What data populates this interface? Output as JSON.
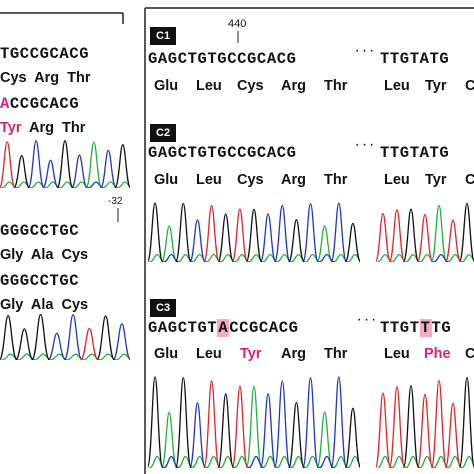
{
  "left_panel": {
    "row1_seq": "TGCCGCACG",
    "row1_aa": "Cys  Arg  Thr",
    "row2_seq_pre": "",
    "row2_seq_mut": "A",
    "row2_seq_post": "CCGCACG",
    "row2_aa_mut": "Tyr",
    "row2_aa_rest": "  Arg  Thr",
    "pos_label": "-32",
    "row3_seq": "GGGCCTGC",
    "row3_aa": "Gly  Ala  Cys",
    "row4_seq": "GGGCCTGC",
    "row4_aa": "Gly  Ala  Cys"
  },
  "right_panel": {
    "c1": {
      "label": "C1",
      "position": "440",
      "seq_left": "GAGCTGTGCCGCACG",
      "ellipsis": "···",
      "seq_right": "TTGTATG",
      "aa_left": [
        "Glu",
        "Leu",
        "Cys",
        "Arg",
        "Thr"
      ],
      "aa_right": [
        "Leu",
        "Tyr",
        "C"
      ]
    },
    "c2": {
      "label": "C2",
      "seq_left": "GAGCTGTGCCGCACG",
      "ellipsis": "···",
      "seq_right": "TTGTATG",
      "aa_left": [
        "Glu",
        "Leu",
        "Cys",
        "Arg",
        "Thr"
      ],
      "aa_right": [
        "Leu",
        "Tyr",
        "C"
      ]
    },
    "c3": {
      "label": "C3",
      "seq_left_pre": "GAGCTGT",
      "seq_left_mut": "A",
      "seq_left_post": "CCGCACG",
      "ellipsis": "···",
      "seq_right_pre": "TTGT",
      "seq_right_mut": "T",
      "seq_right_post": "TG",
      "aa_left": [
        "Glu",
        "Leu",
        "Tyr",
        "Arg",
        "Thr"
      ],
      "aa_right": [
        "Leu",
        "Phe",
        "C"
      ]
    }
  },
  "colors": {
    "trace_A": "#1fb33a",
    "trace_C": "#2136c8",
    "trace_G": "#111111",
    "trace_T": "#e0242a",
    "mutation_highlight": "#f6a8c4",
    "mutation_text": "#d8227a"
  }
}
